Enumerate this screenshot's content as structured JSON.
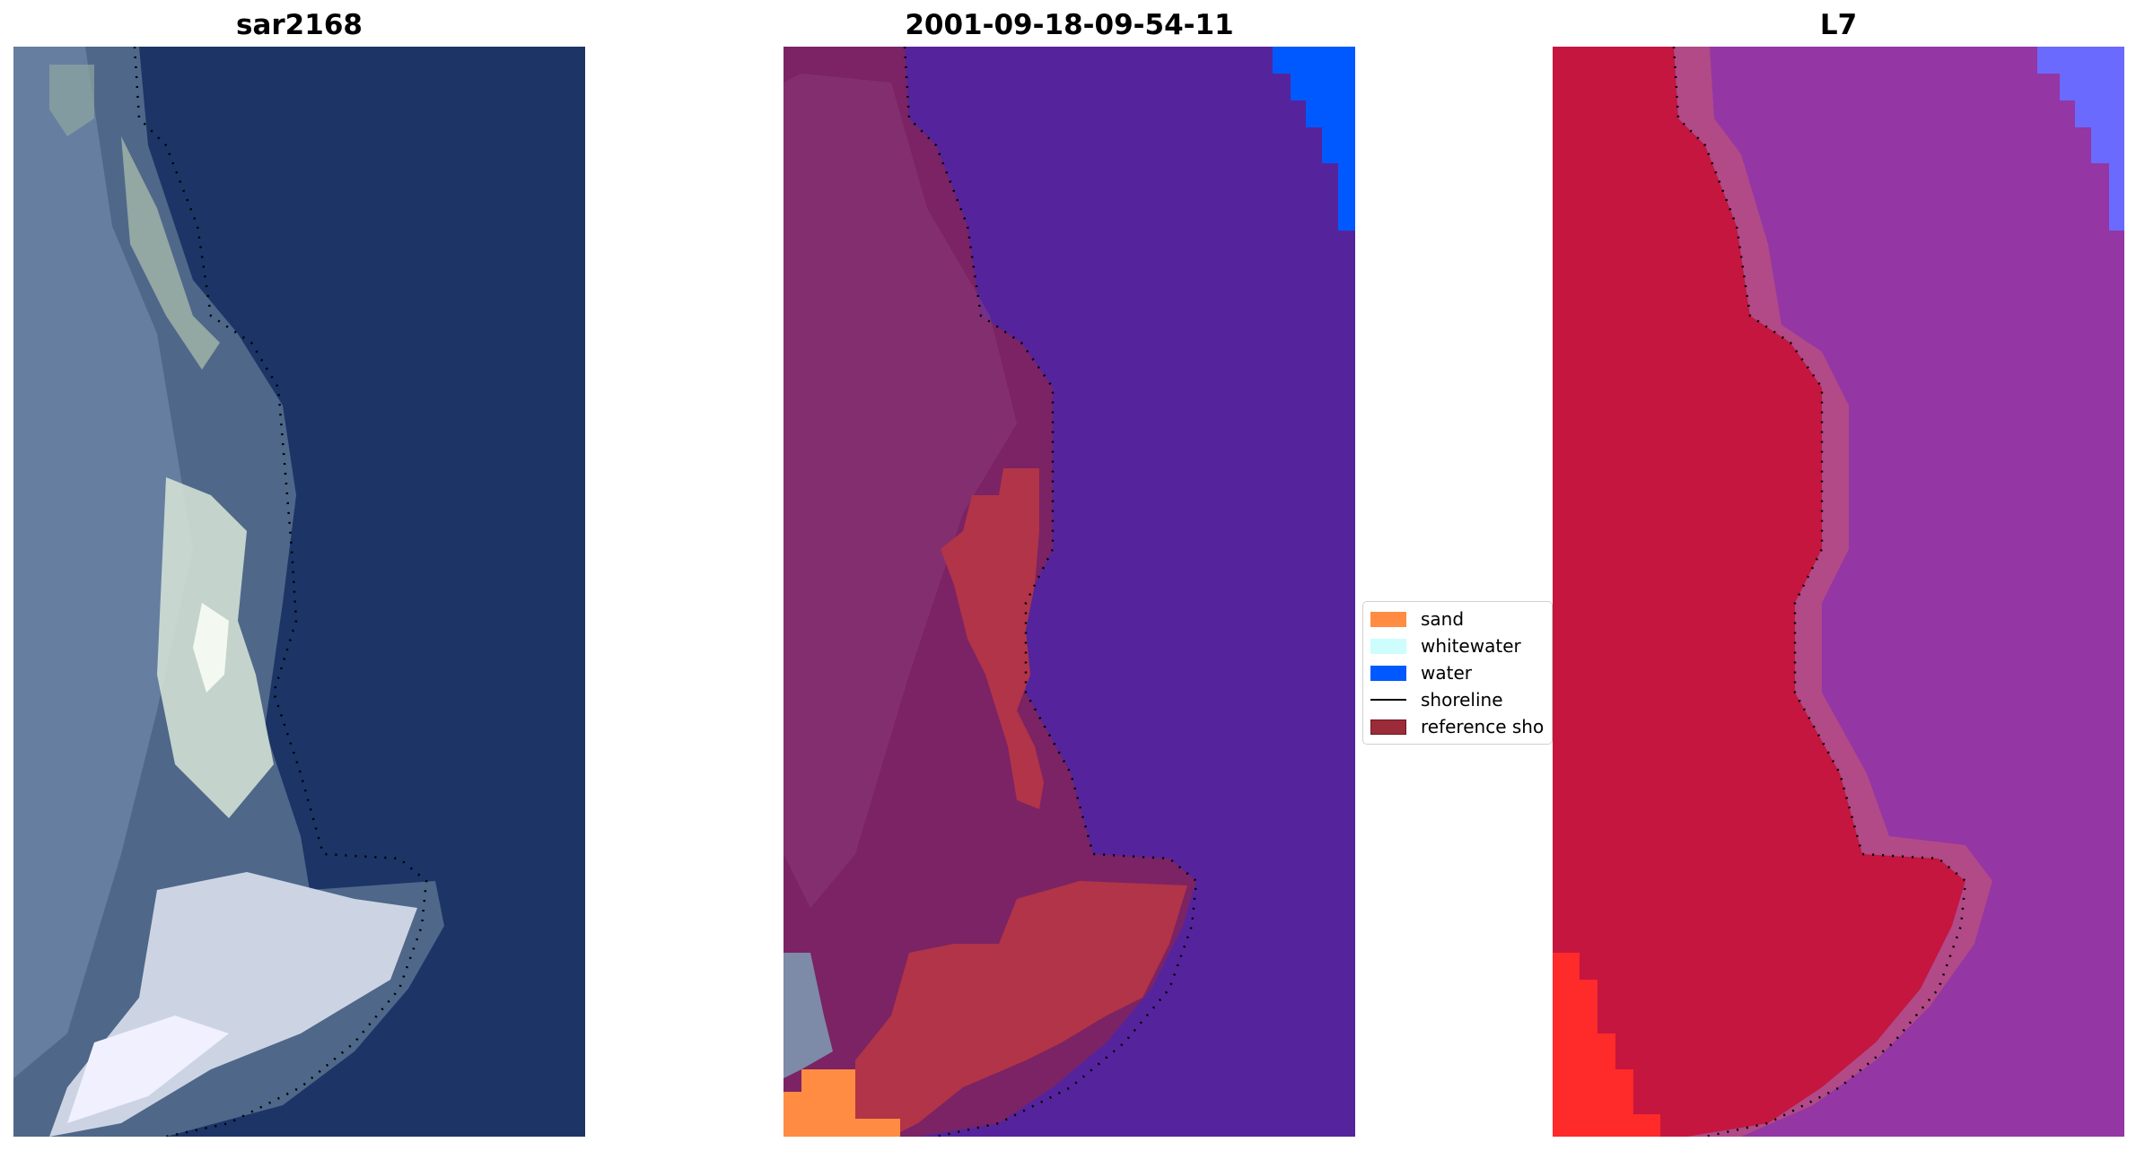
{
  "titles": {
    "left": "sar2168",
    "middle": "2001-09-18-09-54-11",
    "right": "L7"
  },
  "legend": {
    "items": [
      {
        "label": "sand",
        "kind": "patch",
        "color": "#ff8c42"
      },
      {
        "label": "whitewater",
        "kind": "patch",
        "color": "#cdfdfd"
      },
      {
        "label": "water",
        "kind": "patch",
        "color": "#0059ff"
      },
      {
        "label": "shoreline",
        "kind": "line",
        "color": "#000000"
      },
      {
        "label": "reference sho",
        "kind": "patch",
        "color": "#9c2b3a"
      }
    ]
  },
  "colors": {
    "rgb_water": "#1c3566",
    "rgb_land": "#5a7496",
    "class_water_overlay": "#55249c",
    "class_land_overlay": "#7b2364",
    "class_reference": "#b23448",
    "nir_land": "#c4163f",
    "nir_water": "#9436a4",
    "nir_saturated": "#ff2a2a",
    "nir_blue": "#6a6aff"
  }
}
